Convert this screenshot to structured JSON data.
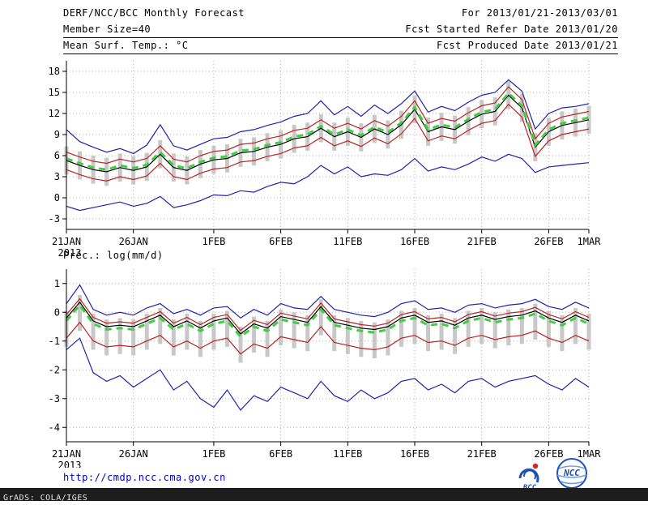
{
  "header": {
    "title": "DERF/NCC/BCC Monthly Forecast",
    "member_size": "Member Size=40",
    "temp_label": "Mean Surf. Temp.: °C",
    "for_range": "For 2013/01/21-2013/03/01",
    "fcst_started": "Fcst Started Refer Date 2013/01/20",
    "fcst_produced": "Fcst Produced Date 2013/01/21"
  },
  "precip_label": "Prec.: log(mm/d)",
  "footer": {
    "url": "http://cmdp.ncc.cma.gov.cn",
    "grads_credit": "GrADS: COLA/IGES",
    "logos": [
      {
        "name": "bcc-logo",
        "label": "BCC"
      },
      {
        "name": "ncc-logo",
        "label": "NCC"
      }
    ]
  },
  "colors": {
    "envelope_blue": "#2222aa",
    "quantile_red": "#bb2222",
    "mean_black": "#000000",
    "median_green": "#44cc44",
    "bar_gray": "#c8c8c8",
    "grid_gray": "#b0b0b0",
    "url_blue": "#0000bb"
  },
  "chart_data": [
    {
      "type": "line",
      "title": "Mean Surf. Temp.: °C",
      "ylim": [
        -4.5,
        19.5
      ],
      "yticks": [
        -3,
        0,
        3,
        6,
        9,
        12,
        15,
        18
      ],
      "n": 40,
      "x_tick_indices": [
        0,
        5,
        11,
        16,
        21,
        26,
        31,
        36,
        39
      ],
      "x_tick_labels": [
        "21JAN",
        "26JAN",
        "1FEB",
        "6FEB",
        "11FEB",
        "16FEB",
        "21FEB",
        "26FEB",
        "1MAR"
      ],
      "year_label": "2013",
      "bars": {
        "color": "#c8c8c8",
        "high": [
          7.3,
          6.6,
          6.0,
          5.7,
          6.3,
          5.9,
          6.4,
          8.2,
          6.3,
          5.9,
          6.8,
          7.4,
          7.6,
          8.4,
          8.6,
          9.2,
          9.6,
          10.4,
          10.7,
          11.9,
          10.7,
          11.4,
          10.6,
          11.8,
          11.0,
          12.4,
          14.6,
          11.4,
          12.1,
          11.7,
          12.9,
          13.9,
          14.3,
          16.6,
          14.8,
          9.2,
          11.4,
          12.3,
          12.7,
          13.1
        ],
        "low": [
          3.3,
          2.6,
          2.0,
          1.7,
          2.3,
          1.9,
          2.4,
          4.2,
          2.3,
          1.9,
          2.8,
          3.4,
          3.6,
          4.4,
          4.6,
          5.2,
          5.6,
          6.4,
          6.7,
          7.9,
          6.7,
          7.4,
          6.6,
          7.8,
          7.0,
          8.4,
          10.6,
          7.4,
          8.1,
          7.7,
          8.9,
          9.9,
          10.3,
          12.6,
          10.8,
          5.2,
          7.4,
          8.3,
          8.7,
          9.1
        ]
      },
      "series": [
        {
          "name": "ensemble-max",
          "color": "#2222aa",
          "values": [
            9.7,
            8.0,
            7.2,
            6.5,
            7.0,
            6.3,
            7.5,
            10.4,
            7.4,
            6.8,
            7.6,
            8.4,
            8.6,
            9.4,
            9.7,
            10.3,
            10.8,
            11.6,
            12.0,
            13.8,
            11.8,
            13.0,
            11.6,
            13.2,
            12.0,
            13.4,
            15.2,
            12.2,
            13.0,
            12.4,
            13.6,
            14.6,
            15.0,
            16.8,
            15.2,
            9.8,
            12.0,
            12.8,
            13.0,
            13.4
          ]
        },
        {
          "name": "ensemble-min",
          "color": "#2222aa",
          "values": [
            -1.2,
            -1.8,
            -1.4,
            -1.0,
            -0.6,
            -1.2,
            -0.8,
            0.2,
            -1.4,
            -1.0,
            -0.4,
            0.4,
            0.3,
            1.0,
            0.8,
            1.6,
            2.2,
            2.0,
            3.0,
            4.6,
            3.4,
            4.4,
            3.0,
            3.4,
            3.2,
            4.0,
            5.6,
            3.8,
            4.4,
            4.0,
            4.8,
            5.8,
            5.2,
            6.2,
            5.6,
            3.6,
            4.4,
            4.6,
            4.8,
            5.0
          ]
        },
        {
          "name": "upper-quartile",
          "color": "#bb2222",
          "values": [
            6.5,
            5.8,
            5.2,
            4.9,
            5.5,
            5.1,
            5.6,
            7.4,
            5.5,
            5.1,
            6.0,
            6.6,
            6.8,
            7.6,
            7.8,
            8.4,
            8.8,
            9.6,
            9.9,
            11.1,
            9.9,
            10.6,
            9.8,
            11.0,
            10.2,
            11.6,
            13.8,
            10.6,
            11.3,
            10.9,
            12.1,
            13.1,
            13.5,
            15.8,
            14.0,
            8.4,
            10.6,
            11.5,
            11.9,
            12.3
          ]
        },
        {
          "name": "lower-quartile",
          "color": "#bb2222",
          "values": [
            4.0,
            3.3,
            2.7,
            2.4,
            3.0,
            2.6,
            3.1,
            4.9,
            3.0,
            2.6,
            3.5,
            4.1,
            4.3,
            5.1,
            5.3,
            5.9,
            6.3,
            7.1,
            7.4,
            8.6,
            7.4,
            8.1,
            7.3,
            8.5,
            7.7,
            9.1,
            11.3,
            8.1,
            8.8,
            8.4,
            9.6,
            10.6,
            11.0,
            13.3,
            11.5,
            5.9,
            8.1,
            9.0,
            9.4,
            9.8
          ]
        },
        {
          "name": "ensemble-mean",
          "color": "#000000",
          "values": [
            5.3,
            4.6,
            4.0,
            3.7,
            4.3,
            3.9,
            4.4,
            6.2,
            4.3,
            3.9,
            4.8,
            5.4,
            5.6,
            6.4,
            6.6,
            7.2,
            7.6,
            8.4,
            8.7,
            9.9,
            8.7,
            9.4,
            8.6,
            9.8,
            9.0,
            10.4,
            12.6,
            9.4,
            10.1,
            9.7,
            10.9,
            11.9,
            12.3,
            14.6,
            12.8,
            7.2,
            9.4,
            10.3,
            10.7,
            11.1
          ]
        },
        {
          "name": "ensemble-median",
          "color": "#44cc44",
          "dash": true,
          "width": 3,
          "values": [
            5.6,
            4.9,
            4.3,
            4.0,
            4.6,
            4.2,
            4.7,
            6.5,
            4.6,
            4.2,
            5.1,
            5.7,
            5.9,
            6.7,
            6.9,
            7.5,
            7.9,
            8.7,
            9.0,
            10.2,
            9.0,
            9.7,
            8.9,
            10.1,
            9.3,
            10.7,
            12.9,
            9.7,
            10.4,
            10.0,
            11.2,
            12.2,
            12.6,
            14.9,
            13.1,
            7.5,
            9.7,
            10.6,
            11.0,
            11.4
          ]
        }
      ]
    },
    {
      "type": "line",
      "title": "Prec.: log(mm/d)",
      "ylim": [
        -4.5,
        1.5
      ],
      "yticks": [
        -4,
        -3,
        -2,
        -1,
        0,
        1
      ],
      "n": 40,
      "x_tick_indices": [
        0,
        5,
        11,
        16,
        21,
        26,
        31,
        36,
        39
      ],
      "x_tick_labels": [
        "21JAN",
        "26JAN",
        "1FEB",
        "6FEB",
        "11FEB",
        "16FEB",
        "21FEB",
        "26FEB",
        "1MAR"
      ],
      "year_label": "2013",
      "bars": {
        "color": "#c8c8c8",
        "high": [
          0.05,
          0.6,
          -0.05,
          -0.25,
          -0.2,
          -0.25,
          -0.05,
          0.15,
          -0.25,
          -0.05,
          -0.3,
          -0.05,
          0.05,
          -0.5,
          -0.15,
          -0.3,
          0.1,
          0,
          -0.1,
          0.45,
          -0.1,
          -0.2,
          -0.3,
          -0.35,
          -0.25,
          0.05,
          0.15,
          -0.1,
          -0.05,
          -0.2,
          0.05,
          0.15,
          0,
          0.1,
          0.15,
          0.3,
          0.05,
          -0.1,
          0.15,
          -0.05
        ],
        "low": [
          -1.2,
          -0.65,
          -1.3,
          -1.5,
          -1.45,
          -1.5,
          -1.3,
          -1.1,
          -1.5,
          -1.3,
          -1.55,
          -1.3,
          -1.2,
          -1.75,
          -1.4,
          -1.55,
          -1.15,
          -1.25,
          -1.35,
          -0.8,
          -1.35,
          -1.45,
          -1.55,
          -1.6,
          -1.5,
          -1.2,
          -1.1,
          -1.35,
          -1.3,
          -1.45,
          -1.2,
          -1.1,
          -1.25,
          -1.15,
          -1.1,
          -0.95,
          -1.2,
          -1.35,
          -1.1,
          -1.3
        ]
      },
      "series": [
        {
          "name": "ensemble-max",
          "color": "#2222aa",
          "values": [
            0.3,
            0.95,
            0.1,
            -0.1,
            0,
            -0.1,
            0.15,
            0.3,
            -0.05,
            0.1,
            -0.1,
            0.15,
            0.2,
            -0.2,
            0.1,
            -0.1,
            0.3,
            0.15,
            0.1,
            0.55,
            0.1,
            0,
            -0.1,
            -0.15,
            0,
            0.3,
            0.4,
            0.1,
            0.15,
            0,
            0.25,
            0.3,
            0.15,
            0.25,
            0.3,
            0.45,
            0.2,
            0.1,
            0.35,
            0.15
          ]
        },
        {
          "name": "ensemble-min",
          "color": "#2222aa",
          "values": [
            -1.3,
            -0.9,
            -2.1,
            -2.4,
            -2.2,
            -2.6,
            -2.3,
            -2.0,
            -2.7,
            -2.4,
            -3.0,
            -3.3,
            -2.7,
            -3.4,
            -2.9,
            -3.1,
            -2.6,
            -2.8,
            -3.0,
            -2.4,
            -2.9,
            -3.1,
            -2.7,
            -3.0,
            -2.8,
            -2.4,
            -2.3,
            -2.7,
            -2.5,
            -2.8,
            -2.4,
            -2.3,
            -2.6,
            -2.4,
            -2.3,
            -2.2,
            -2.5,
            -2.7,
            -2.3,
            -2.6
          ]
        },
        {
          "name": "upper-quartile",
          "color": "#bb2222",
          "values": [
            -0.08,
            0.47,
            -0.18,
            -0.38,
            -0.33,
            -0.38,
            -0.18,
            0.02,
            -0.38,
            -0.18,
            -0.43,
            -0.18,
            -0.08,
            -0.63,
            -0.28,
            -0.43,
            -0.03,
            -0.13,
            -0.23,
            0.32,
            -0.23,
            -0.33,
            -0.43,
            -0.48,
            -0.38,
            -0.08,
            0.02,
            -0.23,
            -0.18,
            -0.33,
            -0.08,
            0.02,
            -0.13,
            -0.03,
            0.02,
            0.17,
            -0.08,
            -0.23,
            0.02,
            -0.18
          ]
        },
        {
          "name": "lower-quartile",
          "color": "#bb2222",
          "values": [
            -0.9,
            -0.35,
            -1.0,
            -1.2,
            -1.15,
            -1.2,
            -1.0,
            -0.8,
            -1.2,
            -1.0,
            -1.25,
            -1.0,
            -0.9,
            -1.45,
            -1.1,
            -1.25,
            -0.85,
            -0.95,
            -1.05,
            -0.5,
            -1.05,
            -1.15,
            -1.25,
            -1.3,
            -1.2,
            -0.9,
            -0.8,
            -1.05,
            -1.0,
            -1.15,
            -0.9,
            -0.8,
            -0.95,
            -0.85,
            -0.8,
            -0.65,
            -0.9,
            -1.05,
            -0.8,
            -1.0
          ]
        },
        {
          "name": "ensemble-mean",
          "color": "#000000",
          "values": [
            -0.2,
            0.35,
            -0.3,
            -0.5,
            -0.45,
            -0.5,
            -0.3,
            -0.1,
            -0.5,
            -0.3,
            -0.55,
            -0.3,
            -0.2,
            -0.75,
            -0.4,
            -0.55,
            -0.15,
            -0.25,
            -0.35,
            0.2,
            -0.35,
            -0.45,
            -0.55,
            -0.6,
            -0.5,
            -0.2,
            -0.1,
            -0.35,
            -0.3,
            -0.45,
            -0.2,
            -0.1,
            -0.25,
            -0.15,
            -0.1,
            0.05,
            -0.2,
            -0.35,
            -0.1,
            -0.3
          ]
        },
        {
          "name": "ensemble-median",
          "color": "#44cc44",
          "dash": true,
          "width": 3,
          "values": [
            -0.3,
            0.25,
            -0.4,
            -0.6,
            -0.55,
            -0.6,
            -0.4,
            -0.2,
            -0.6,
            -0.4,
            -0.65,
            -0.4,
            -0.3,
            -0.85,
            -0.5,
            -0.65,
            -0.25,
            -0.35,
            -0.45,
            0.1,
            -0.45,
            -0.55,
            -0.65,
            -0.7,
            -0.6,
            -0.3,
            -0.2,
            -0.45,
            -0.4,
            -0.55,
            -0.3,
            -0.2,
            -0.35,
            -0.25,
            -0.2,
            -0.05,
            -0.3,
            -0.45,
            -0.2,
            -0.4
          ]
        }
      ]
    }
  ]
}
